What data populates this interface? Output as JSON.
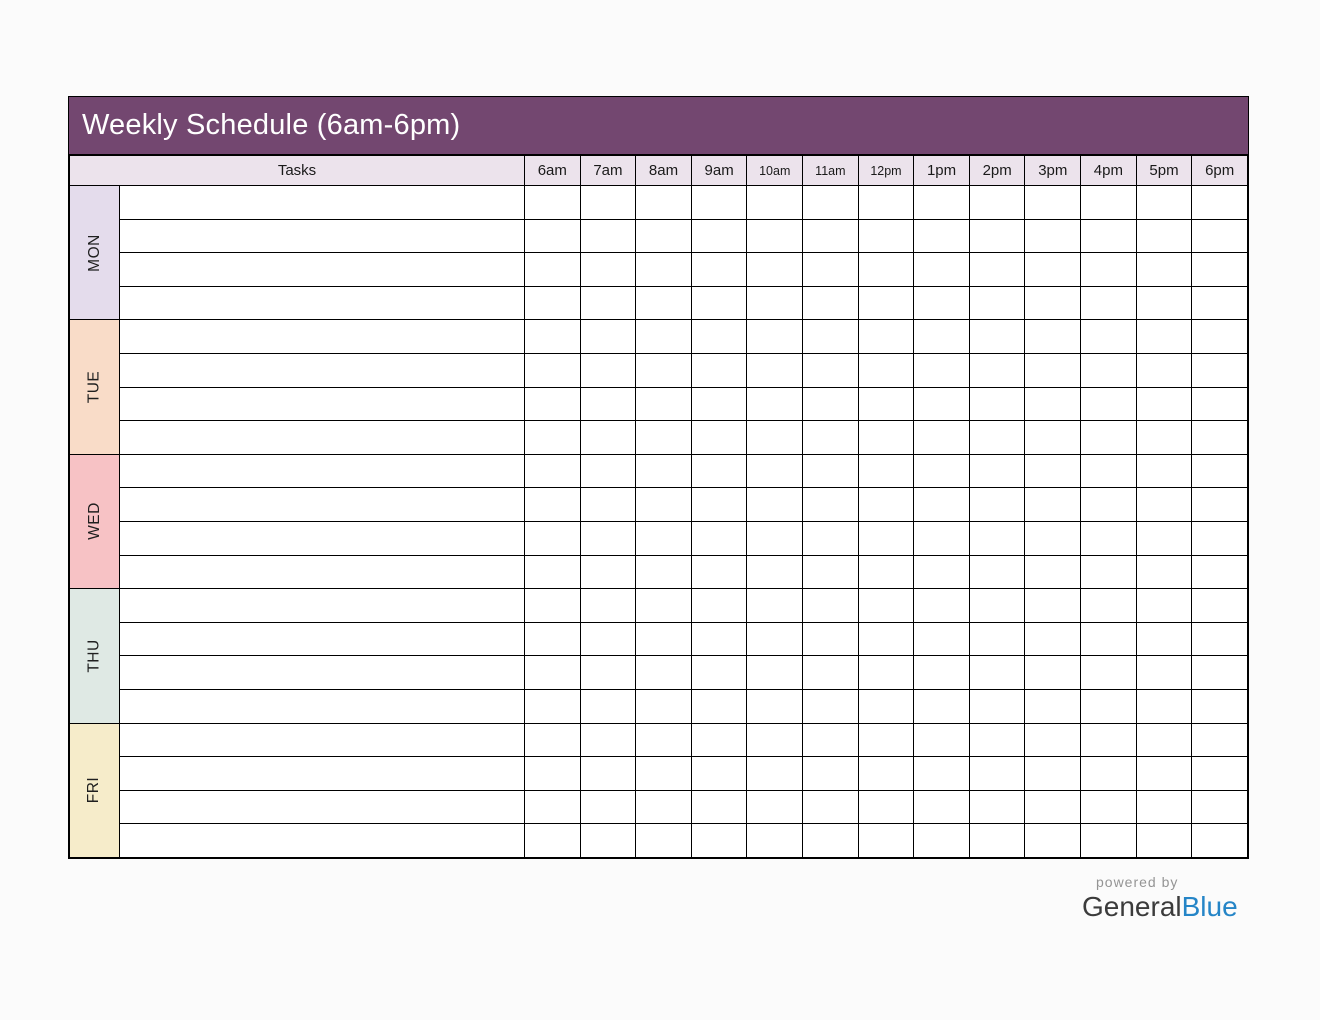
{
  "schedule": {
    "title": "Weekly Schedule (6am-6pm)",
    "tasks_header": "Tasks",
    "time_columns": [
      "6am",
      "7am",
      "8am",
      "9am",
      "10am",
      "11am",
      "12pm",
      "1pm",
      "2pm",
      "3pm",
      "4pm",
      "5pm",
      "6pm"
    ],
    "rows_per_day": 4,
    "days": [
      {
        "label": "MON",
        "color": "#e4dcec"
      },
      {
        "label": "TUE",
        "color": "#f9dcc8"
      },
      {
        "label": "WED",
        "color": "#f7c2c5"
      },
      {
        "label": "THU",
        "color": "#dfe9e4"
      },
      {
        "label": "FRI",
        "color": "#f6ecca"
      }
    ],
    "colors": {
      "title_bar": "#734770",
      "title_text": "#ffffff",
      "header_row_bg": "#ece3ec",
      "grid_border": "#000000",
      "cell_bg": "#ffffff"
    }
  },
  "footer": {
    "powered_by": "powered by",
    "brand_general": "General",
    "brand_blue": "Blue",
    "powered_by_color": "#949494",
    "brand_general_color": "#3b3b3b",
    "brand_blue_color": "#2585c7"
  }
}
